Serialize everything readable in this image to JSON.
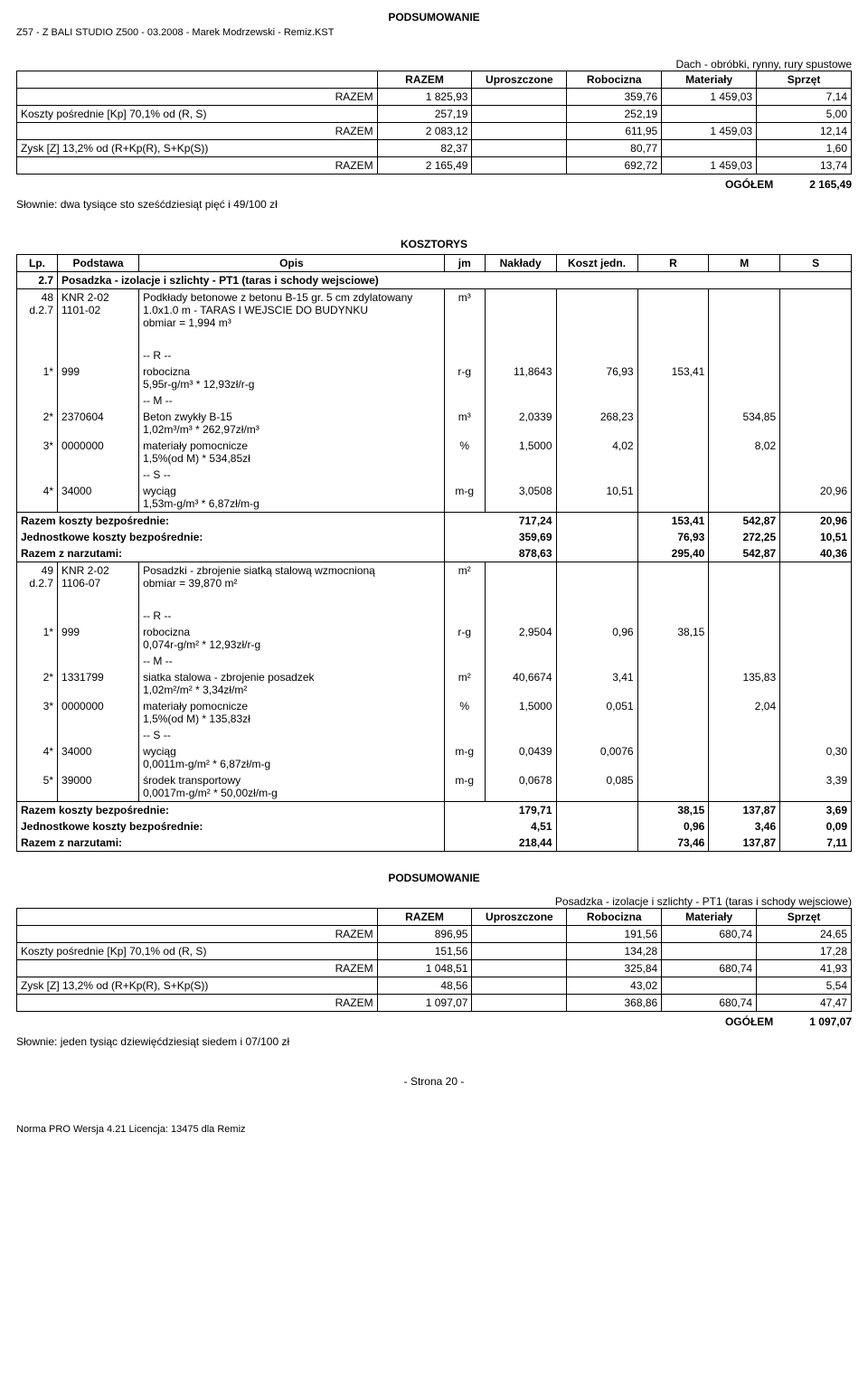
{
  "header": {
    "doc_ref": "Z57 - Z BALI STUDIO Z500 - 03.2008 - Marek Modrzewski - Remiz.KST",
    "podsumowanie": "PODSUMOWANIE"
  },
  "summary1": {
    "title_right": "Dach - obróbki, rynny, rury spustowe",
    "header": [
      "",
      "RAZEM",
      "Uproszczone",
      "Robocizna",
      "Materiały",
      "Sprzęt"
    ],
    "rows": [
      {
        "label": "RAZEM",
        "c1": "1 825,93",
        "c2": "",
        "c3": "359,76",
        "c4": "1 459,03",
        "c5": "7,14"
      },
      {
        "label": "Koszty pośrednie [Kp] 70,1% od (R, S)",
        "c1": "257,19",
        "c2": "",
        "c3": "252,19",
        "c4": "",
        "c5": "5,00"
      },
      {
        "label": "RAZEM",
        "c1": "2 083,12",
        "c2": "",
        "c3": "611,95",
        "c4": "1 459,03",
        "c5": "12,14"
      },
      {
        "label": "Zysk [Z] 13,2% od (R+Kp(R), S+Kp(S))",
        "c1": "82,37",
        "c2": "",
        "c3": "80,77",
        "c4": "",
        "c5": "1,60"
      },
      {
        "label": "RAZEM",
        "c1": "2 165,49",
        "c2": "",
        "c3": "692,72",
        "c4": "1 459,03",
        "c5": "13,74"
      }
    ],
    "ogolem_label": "OGÓŁEM",
    "ogolem_value": "2 165,49",
    "slownie": "Słownie:  dwa tysiące sto sześćdziesiąt pięć i 49/100 zł"
  },
  "kosztorys": {
    "title": "KOSZTORYS",
    "header": [
      "Lp.",
      "Podstawa",
      "Opis",
      "jm",
      "Nakłady",
      "Koszt jedn.",
      "R",
      "M",
      "S"
    ],
    "section": {
      "lp": "2.7",
      "opis": "Posadzka - izolacje i szlichty - PT1 (taras i schody wejsciowe)"
    },
    "item48": {
      "lp": "48",
      "sub": "d.2.7",
      "pod1": "KNR 2-02",
      "pod2": "1101-02",
      "opis": "Podkłady betonowe z betonu B-15 gr. 5 cm zdylatowany 1.0x1.0 m - TARAS I WEJSCIE DO BUDYNKU",
      "obmiar": "obmiar  = 1,994 m³",
      "jm": "m³"
    },
    "item48_lines": [
      {
        "sep": "-- R --"
      },
      {
        "lp": "1*",
        "pod": "999",
        "opis": "robocizna",
        "calc": "5,95r-g/m³ * 12,93zł/r-g",
        "jm": "r-g",
        "nakl": "11,8643",
        "koszt": "76,93",
        "r": "153,41",
        "m": "",
        "s": ""
      },
      {
        "sep": "-- M --"
      },
      {
        "lp": "2*",
        "pod": "2370604",
        "opis": "Beton zwykły B-15",
        "calc": "1,02m³/m³ * 262,97zł/m³",
        "jm": "m³",
        "nakl": "2,0339",
        "koszt": "268,23",
        "r": "",
        "m": "534,85",
        "s": ""
      },
      {
        "lp": "3*",
        "pod": "0000000",
        "opis": "materiały pomocnicze",
        "calc": "1,5%(od M) * 534,85zł",
        "jm": "%",
        "nakl": "1,5000",
        "koszt": "4,02",
        "r": "",
        "m": "8,02",
        "s": ""
      },
      {
        "sep": "-- S --"
      },
      {
        "lp": "4*",
        "pod": "34000",
        "opis": "wyciąg",
        "calc": "1,53m-g/m³ * 6,87zł/m-g",
        "jm": "m-g",
        "nakl": "3,0508",
        "koszt": "10,51",
        "r": "",
        "m": "",
        "s": "20,96"
      }
    ],
    "item48_totals": [
      {
        "label": "Razem koszty bezpośrednie:",
        "v": "717,24",
        "r": "153,41",
        "m": "542,87",
        "s": "20,96"
      },
      {
        "label": "Jednostkowe koszty bezpośrednie:",
        "v": "359,69",
        "r": "76,93",
        "m": "272,25",
        "s": "10,51"
      },
      {
        "label": "Razem z narzutami:",
        "v": "878,63",
        "r": "295,40",
        "m": "542,87",
        "s": "40,36"
      }
    ],
    "item49": {
      "lp": "49",
      "sub": "d.2.7",
      "pod1": "KNR 2-02",
      "pod2": "1106-07",
      "opis": "Posadzki - zbrojenie siatką stalową wzmocnioną",
      "obmiar": "obmiar  = 39,870 m²",
      "jm": "m²"
    },
    "item49_lines": [
      {
        "sep": "-- R --"
      },
      {
        "lp": "1*",
        "pod": "999",
        "opis": "robocizna",
        "calc": "0,074r-g/m² * 12,93zł/r-g",
        "jm": "r-g",
        "nakl": "2,9504",
        "koszt": "0,96",
        "r": "38,15",
        "m": "",
        "s": ""
      },
      {
        "sep": "-- M --"
      },
      {
        "lp": "2*",
        "pod": "1331799",
        "opis": "siatka stalowa - zbrojenie posadzek",
        "calc": "1,02m²/m² * 3,34zł/m²",
        "jm": "m²",
        "nakl": "40,6674",
        "koszt": "3,41",
        "r": "",
        "m": "135,83",
        "s": ""
      },
      {
        "lp": "3*",
        "pod": "0000000",
        "opis": "materiały pomocnicze",
        "calc": "1,5%(od M) * 135,83zł",
        "jm": "%",
        "nakl": "1,5000",
        "koszt": "0,051",
        "r": "",
        "m": "2,04",
        "s": ""
      },
      {
        "sep": "-- S --"
      },
      {
        "lp": "4*",
        "pod": "34000",
        "opis": "wyciąg",
        "calc": "0,0011m-g/m² * 6,87zł/m-g",
        "jm": "m-g",
        "nakl": "0,0439",
        "koszt": "0,0076",
        "r": "",
        "m": "",
        "s": "0,30"
      },
      {
        "lp": "5*",
        "pod": "39000",
        "opis": "środek transportowy",
        "calc": "0,0017m-g/m² * 50,00zł/m-g",
        "jm": "m-g",
        "nakl": "0,0678",
        "koszt": "0,085",
        "r": "",
        "m": "",
        "s": "3,39"
      }
    ],
    "item49_totals": [
      {
        "label": "Razem koszty bezpośrednie:",
        "v": "179,71",
        "r": "38,15",
        "m": "137,87",
        "s": "3,69"
      },
      {
        "label": "Jednostkowe koszty bezpośrednie:",
        "v": "4,51",
        "r": "0,96",
        "m": "3,46",
        "s": "0,09"
      },
      {
        "label": "Razem z narzutami:",
        "v": "218,44",
        "r": "73,46",
        "m": "137,87",
        "s": "7,11"
      }
    ]
  },
  "summary2": {
    "title_right": "Posadzka - izolacje i szlichty - PT1 (taras i schody wejsciowe)",
    "header_word": "PODSUMOWANIE",
    "header": [
      "",
      "RAZEM",
      "Uproszczone",
      "Robocizna",
      "Materiały",
      "Sprzęt"
    ],
    "rows": [
      {
        "label": "RAZEM",
        "c1": "896,95",
        "c2": "",
        "c3": "191,56",
        "c4": "680,74",
        "c5": "24,65"
      },
      {
        "label": "Koszty pośrednie [Kp] 70,1% od (R, S)",
        "c1": "151,56",
        "c2": "",
        "c3": "134,28",
        "c4": "",
        "c5": "17,28"
      },
      {
        "label": "RAZEM",
        "c1": "1 048,51",
        "c2": "",
        "c3": "325,84",
        "c4": "680,74",
        "c5": "41,93"
      },
      {
        "label": "Zysk [Z] 13,2% od (R+Kp(R), S+Kp(S))",
        "c1": "48,56",
        "c2": "",
        "c3": "43,02",
        "c4": "",
        "c5": "5,54"
      },
      {
        "label": "RAZEM",
        "c1": "1 097,07",
        "c2": "",
        "c3": "368,86",
        "c4": "680,74",
        "c5": "47,47"
      }
    ],
    "ogolem_label": "OGÓŁEM",
    "ogolem_value": "1 097,07",
    "slownie": "Słownie:  jeden tysiąc dziewięćdziesiąt siedem i 07/100 zł"
  },
  "footer": {
    "page": "- Strona 20 -",
    "note": "Norma PRO Wersja 4.21 Licencja: 13475 dla Remiz"
  },
  "col_widths": {
    "summary": [
      "380px",
      "100px",
      "100px",
      "100px",
      "100px",
      "100px"
    ],
    "kosztorys": [
      "40px",
      "80px",
      "300px",
      "40px",
      "70px",
      "80px",
      "70px",
      "70px",
      "70px"
    ]
  }
}
